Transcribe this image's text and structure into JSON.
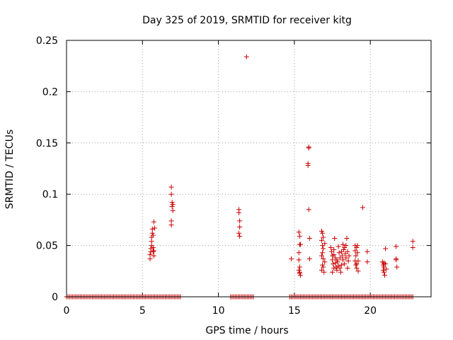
{
  "chart_data": {
    "type": "scatter",
    "title": "Day 325 of 2019, SRMTID for receiver kitg",
    "xlabel": "GPS time / hours",
    "ylabel": "SRMTID / TECUs",
    "xlim": [
      0,
      24
    ],
    "ylim": [
      0,
      0.25
    ],
    "x_ticks": [
      0,
      5,
      10,
      15,
      20
    ],
    "x_tick_labels": [
      "0",
      "5",
      "10",
      "15",
      "20"
    ],
    "y_ticks": [
      0,
      0.05,
      0.1,
      0.15,
      0.2,
      0.25
    ],
    "y_tick_labels": [
      "0",
      "0.05",
      "0.1",
      "0.15",
      "0.2",
      "0.25"
    ],
    "grid": true,
    "marker": "+",
    "series": [
      {
        "name": "SRMTID",
        "color": "#cc0000",
        "zero_ranges": [
          [
            0.0,
            7.5
          ],
          [
            10.8,
            12.3
          ],
          [
            14.7,
            22.8
          ]
        ],
        "zero_step": 0.1,
        "points": [
          [
            5.5,
            0.037
          ],
          [
            5.5,
            0.041
          ],
          [
            5.55,
            0.044
          ],
          [
            5.55,
            0.047
          ],
          [
            5.6,
            0.05
          ],
          [
            5.6,
            0.054
          ],
          [
            5.6,
            0.058
          ],
          [
            5.65,
            0.062
          ],
          [
            5.65,
            0.066
          ],
          [
            5.7,
            0.06
          ],
          [
            5.7,
            0.048
          ],
          [
            5.7,
            0.044
          ],
          [
            5.75,
            0.04
          ],
          [
            5.75,
            0.045
          ],
          [
            5.8,
            0.067
          ],
          [
            5.75,
            0.073
          ],
          [
            6.9,
            0.107
          ],
          [
            6.9,
            0.1
          ],
          [
            6.95,
            0.092
          ],
          [
            6.95,
            0.088
          ],
          [
            7.0,
            0.084
          ],
          [
            7.0,
            0.09
          ],
          [
            6.9,
            0.074
          ],
          [
            6.9,
            0.07
          ],
          [
            11.35,
            0.085
          ],
          [
            11.35,
            0.082
          ],
          [
            11.4,
            0.074
          ],
          [
            11.4,
            0.068
          ],
          [
            11.35,
            0.062
          ],
          [
            11.4,
            0.059
          ],
          [
            11.85,
            0.234
          ],
          [
            14.8,
            0.037
          ],
          [
            15.3,
            0.063
          ],
          [
            15.35,
            0.059
          ],
          [
            15.35,
            0.051
          ],
          [
            15.4,
            0.051
          ],
          [
            15.3,
            0.043
          ],
          [
            15.3,
            0.036
          ],
          [
            15.35,
            0.029
          ],
          [
            15.3,
            0.026
          ],
          [
            15.35,
            0.023
          ],
          [
            15.4,
            0.021
          ],
          [
            15.35,
            0.024
          ],
          [
            15.95,
            0.146
          ],
          [
            15.95,
            0.145
          ],
          [
            15.9,
            0.13
          ],
          [
            15.9,
            0.128
          ],
          [
            15.95,
            0.085
          ],
          [
            16.0,
            0.057
          ],
          [
            16.0,
            0.037
          ],
          [
            16.8,
            0.064
          ],
          [
            16.85,
            0.062
          ],
          [
            16.9,
            0.058
          ],
          [
            16.8,
            0.055
          ],
          [
            16.85,
            0.05
          ],
          [
            16.9,
            0.047
          ],
          [
            16.85,
            0.043
          ],
          [
            16.8,
            0.04
          ],
          [
            16.9,
            0.037
          ],
          [
            16.85,
            0.031
          ],
          [
            16.8,
            0.026
          ],
          [
            16.95,
            0.024
          ],
          [
            16.9,
            0.029
          ],
          [
            17.0,
            0.034
          ],
          [
            17.0,
            0.052
          ],
          [
            17.4,
            0.048
          ],
          [
            17.45,
            0.044
          ],
          [
            17.5,
            0.04
          ],
          [
            17.5,
            0.036
          ],
          [
            17.55,
            0.032
          ],
          [
            17.6,
            0.028
          ],
          [
            17.5,
            0.024
          ],
          [
            17.6,
            0.046
          ],
          [
            17.6,
            0.041
          ],
          [
            17.7,
            0.038
          ],
          [
            17.7,
            0.033
          ],
          [
            17.75,
            0.029
          ],
          [
            17.65,
            0.057
          ],
          [
            17.8,
            0.036
          ],
          [
            17.8,
            0.026
          ],
          [
            17.85,
            0.034
          ],
          [
            17.9,
            0.03
          ],
          [
            17.9,
            0.049
          ],
          [
            17.95,
            0.043
          ],
          [
            18.0,
            0.038
          ],
          [
            18.0,
            0.028
          ],
          [
            18.05,
            0.024
          ],
          [
            18.1,
            0.031
          ],
          [
            18.1,
            0.044
          ],
          [
            18.15,
            0.04
          ],
          [
            18.2,
            0.036
          ],
          [
            18.2,
            0.051
          ],
          [
            18.25,
            0.046
          ],
          [
            18.3,
            0.048
          ],
          [
            18.3,
            0.032
          ],
          [
            18.35,
            0.042
          ],
          [
            18.4,
            0.05
          ],
          [
            18.4,
            0.038
          ],
          [
            18.45,
            0.057
          ],
          [
            18.5,
            0.044
          ],
          [
            18.5,
            0.028
          ],
          [
            18.55,
            0.035
          ],
          [
            18.6,
            0.04
          ],
          [
            19.0,
            0.05
          ],
          [
            19.0,
            0.045
          ],
          [
            19.05,
            0.04
          ],
          [
            19.0,
            0.035
          ],
          [
            19.05,
            0.031
          ],
          [
            19.1,
            0.028
          ],
          [
            19.1,
            0.048
          ],
          [
            19.15,
            0.043
          ],
          [
            19.15,
            0.05
          ],
          [
            19.2,
            0.025
          ],
          [
            19.2,
            0.035
          ],
          [
            19.1,
            0.032
          ],
          [
            19.5,
            0.087
          ],
          [
            19.8,
            0.044
          ],
          [
            19.8,
            0.034
          ],
          [
            20.8,
            0.034
          ],
          [
            20.85,
            0.031
          ],
          [
            20.9,
            0.029
          ],
          [
            20.85,
            0.026
          ],
          [
            20.9,
            0.024
          ],
          [
            20.95,
            0.021
          ],
          [
            20.9,
            0.033
          ],
          [
            21.0,
            0.032
          ],
          [
            21.0,
            0.047
          ],
          [
            21.05,
            0.027
          ],
          [
            21.7,
            0.049
          ],
          [
            21.7,
            0.037
          ],
          [
            21.75,
            0.029
          ],
          [
            21.7,
            0.036
          ],
          [
            22.8,
            0.054
          ],
          [
            22.8,
            0.048
          ]
        ]
      }
    ]
  }
}
